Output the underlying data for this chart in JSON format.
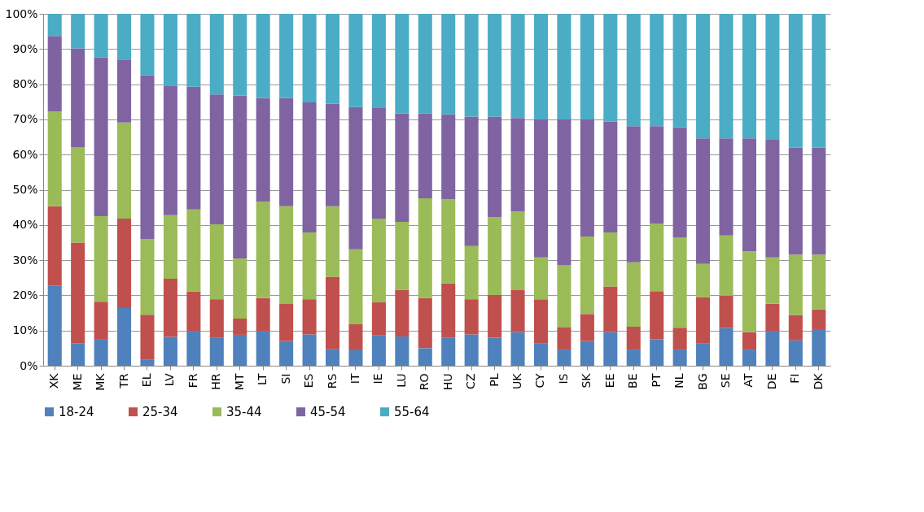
{
  "chart_data": {
    "type": "bar",
    "stacked": true,
    "categories": [
      "XK",
      "ME",
      "MK",
      "TR",
      "EL",
      "LV",
      "FR",
      "HR",
      "MT",
      "LT",
      "SI",
      "ES",
      "RS",
      "IT",
      "IE",
      "LU",
      "RO",
      "HU",
      "CZ",
      "PL",
      "UK",
      "CY",
      "IS",
      "SK",
      "EE",
      "BE",
      "PT",
      "NL",
      "BG",
      "SE",
      "AT",
      "DE",
      "FI",
      "DK"
    ],
    "series": [
      {
        "name": "18-24",
        "color": "#4f81bd",
        "values": [
          22.7,
          6.4,
          7.6,
          16.4,
          1.7,
          8.2,
          9.8,
          7.9,
          8.8,
          9.8,
          7.0,
          8.9,
          4.7,
          4.4,
          8.6,
          8.3,
          5.0,
          7.9,
          8.9,
          8.0,
          9.5,
          6.3,
          4.6,
          7.0,
          9.5,
          4.6,
          7.5,
          4.6,
          6.3,
          10.7,
          4.6,
          9.9,
          7.2,
          10.4
        ]
      },
      {
        "name": "25-34",
        "color": "#c0504d",
        "values": [
          22.6,
          28.6,
          10.6,
          25.4,
          12.8,
          16.5,
          11.3,
          11.0,
          4.6,
          9.4,
          10.7,
          10.0,
          20.6,
          7.4,
          9.4,
          13.3,
          14.2,
          15.5,
          10.0,
          12.1,
          12.0,
          12.6,
          6.4,
          7.7,
          13.0,
          6.5,
          13.7,
          6.2,
          13.2,
          9.2,
          4.9,
          7.7,
          7.2,
          5.6
        ]
      },
      {
        "name": "35-44",
        "color": "#9bbb59",
        "values": [
          26.9,
          27.0,
          24.3,
          27.3,
          21.5,
          18.1,
          23.3,
          21.3,
          17.1,
          27.4,
          27.6,
          19.0,
          20.0,
          21.3,
          23.8,
          19.3,
          28.4,
          23.9,
          15.1,
          22.1,
          22.3,
          11.9,
          17.5,
          22.0,
          15.4,
          18.3,
          19.2,
          25.6,
          9.4,
          17.1,
          23.0,
          13.2,
          17.2,
          15.6
        ]
      },
      {
        "name": "45-54",
        "color": "#8064a2",
        "values": [
          21.5,
          28.2,
          45.1,
          17.9,
          46.5,
          36.8,
          34.9,
          36.9,
          46.3,
          29.5,
          30.8,
          36.9,
          29.2,
          40.4,
          31.4,
          30.8,
          24.1,
          24.1,
          36.8,
          28.6,
          26.6,
          39.2,
          41.5,
          33.3,
          31.5,
          38.7,
          27.7,
          31.4,
          35.7,
          27.6,
          32.1,
          33.4,
          30.4,
          30.4
        ]
      },
      {
        "name": "55-64",
        "color": "#4bacc6",
        "values": [
          6.3,
          9.8,
          12.4,
          13.0,
          17.5,
          20.4,
          20.7,
          22.9,
          23.2,
          23.9,
          23.9,
          25.2,
          25.5,
          26.5,
          26.8,
          28.3,
          28.3,
          28.6,
          29.2,
          29.2,
          29.6,
          30.0,
          30.0,
          30.0,
          30.6,
          31.9,
          31.9,
          32.2,
          35.4,
          35.4,
          35.4,
          35.8,
          38.0,
          38.0
        ]
      }
    ],
    "ylim": [
      0,
      100
    ],
    "yticks": [
      {
        "value": 0,
        "label": "0%"
      },
      {
        "value": 10,
        "label": "10%"
      },
      {
        "value": 20,
        "label": "20%"
      },
      {
        "value": 30,
        "label": "30%"
      },
      {
        "value": 40,
        "label": "40%"
      },
      {
        "value": 50,
        "label": "50%"
      },
      {
        "value": 60,
        "label": "60%"
      },
      {
        "value": 70,
        "label": "70%"
      },
      {
        "value": 80,
        "label": "80%"
      },
      {
        "value": 90,
        "label": "90%"
      },
      {
        "value": 100,
        "label": "100%"
      }
    ],
    "grid": "y",
    "legend": "bottom"
  }
}
